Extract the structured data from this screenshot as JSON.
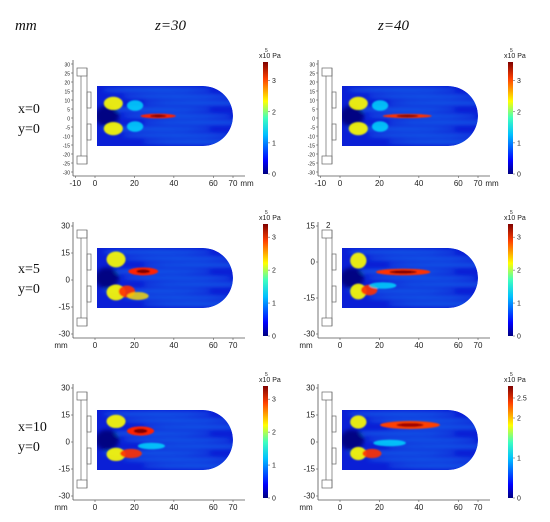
{
  "header": {
    "unit_label": "mm",
    "col1": "z=30",
    "col2": "z=40"
  },
  "rows": [
    {
      "x_label": "x=0",
      "y_label": "y=0"
    },
    {
      "x_label": "x=5",
      "y_label": "y=0"
    },
    {
      "x_label": "x=10",
      "y_label": "y=0"
    }
  ],
  "panels": [
    {
      "unit": "x10 Pa",
      "exp": "5",
      "cb_ticks": [
        "3",
        "2",
        "1",
        "0"
      ],
      "cb_max": 3.6,
      "y_ticks": [
        "30",
        "25",
        "20",
        "15",
        "10",
        "5",
        "0",
        "-5",
        "-10",
        "-15",
        "-20",
        "-25",
        "-30"
      ],
      "x_ticks": [
        "-10",
        "0",
        "20",
        "40",
        "60",
        "70"
      ],
      "x_unit": "mm",
      "x_unit_side": "right",
      "extra_label": ""
    },
    {
      "unit": "x10 Pa",
      "exp": "5",
      "cb_ticks": [
        "3",
        "2",
        "1",
        "0"
      ],
      "cb_max": 3.6,
      "y_ticks": [
        "30",
        "25",
        "20",
        "15",
        "10",
        "5",
        "0",
        "-5",
        "-10",
        "-15",
        "-20",
        "-25",
        "-30"
      ],
      "x_ticks": [
        "-10",
        "0",
        "20",
        "40",
        "60",
        "70"
      ],
      "x_unit": "mm",
      "x_unit_side": "right",
      "extra_label": ""
    },
    {
      "unit": "x10 Pa",
      "exp": "5",
      "cb_ticks": [
        "3",
        "2",
        "1",
        "0"
      ],
      "cb_max": 3.4,
      "y_ticks": [
        "30",
        "15",
        "0",
        "-15",
        "-30"
      ],
      "x_ticks": [
        "0",
        "20",
        "40",
        "60",
        "70"
      ],
      "x_unit": "mm",
      "x_unit_side": "left",
      "extra_label": ""
    },
    {
      "unit": "x10 Pa",
      "exp": "5",
      "cb_ticks": [
        "3",
        "2",
        "1",
        "0"
      ],
      "cb_max": 3.4,
      "y_ticks": [
        "15",
        "0",
        "-15",
        "-30"
      ],
      "x_ticks": [
        "0",
        "20",
        "40",
        "60",
        "70"
      ],
      "x_unit": "mm",
      "x_unit_side": "left",
      "extra_label": "2"
    },
    {
      "unit": "x10 Pa",
      "exp": "5",
      "cb_ticks": [
        "3",
        "2",
        "1",
        "0"
      ],
      "cb_max": 3.4,
      "y_ticks": [
        "30",
        "15",
        "0",
        "-15",
        "-30"
      ],
      "x_ticks": [
        "0",
        "20",
        "40",
        "60",
        "70"
      ],
      "x_unit": "mm",
      "x_unit_side": "left",
      "extra_label": ""
    },
    {
      "unit": "x10 Pa",
      "exp": "5",
      "cb_ticks": [
        "2.5",
        "2",
        "1",
        "0"
      ],
      "cb_max": 2.8,
      "y_ticks": [
        "30",
        "15",
        "0",
        "-15",
        "-30"
      ],
      "x_ticks": [
        "0",
        "20",
        "40",
        "60",
        "70"
      ],
      "x_unit": "mm",
      "x_unit_side": "left",
      "extra_label": ""
    }
  ]
}
